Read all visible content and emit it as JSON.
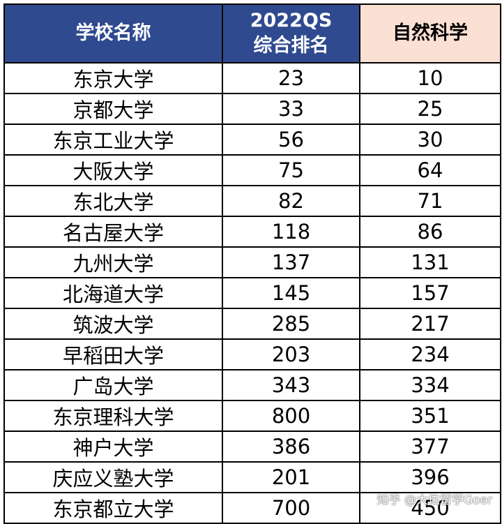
{
  "header": {
    "col1": "学校名称",
    "col2_line1": "2022QS",
    "col2_line2": "综合排名",
    "col3": "自然科学"
  },
  "colors": {
    "header_blue": "#2f4a8f",
    "header_pink": "#fbe0d4"
  },
  "rows": [
    {
      "name": "东京大学",
      "qs": "23",
      "sci": "10"
    },
    {
      "name": "京都大学",
      "qs": "33",
      "sci": "25"
    },
    {
      "name": "东京工业大学",
      "qs": "56",
      "sci": "30"
    },
    {
      "name": "大阪大学",
      "qs": "75",
      "sci": "64"
    },
    {
      "name": "东北大学",
      "qs": "82",
      "sci": "71"
    },
    {
      "name": "名古屋大学",
      "qs": "118",
      "sci": "86"
    },
    {
      "name": "九州大学",
      "qs": "137",
      "sci": "131"
    },
    {
      "name": "北海道大学",
      "qs": "145",
      "sci": "157"
    },
    {
      "name": "筑波大学",
      "qs": "285",
      "sci": "217"
    },
    {
      "name": "早稻田大学",
      "qs": "203",
      "sci": "234"
    },
    {
      "name": "广岛大学",
      "qs": "343",
      "sci": "334"
    },
    {
      "name": "东京理科大学",
      "qs": "800",
      "sci": "351"
    },
    {
      "name": "神户大学",
      "qs": "386",
      "sci": "377"
    },
    {
      "name": "庆应义塾大学",
      "qs": "201",
      "sci": "396"
    },
    {
      "name": "东京都立大学",
      "qs": "700",
      "sci": "450"
    }
  ],
  "watermark": "知乎 @大佑留学Goer"
}
